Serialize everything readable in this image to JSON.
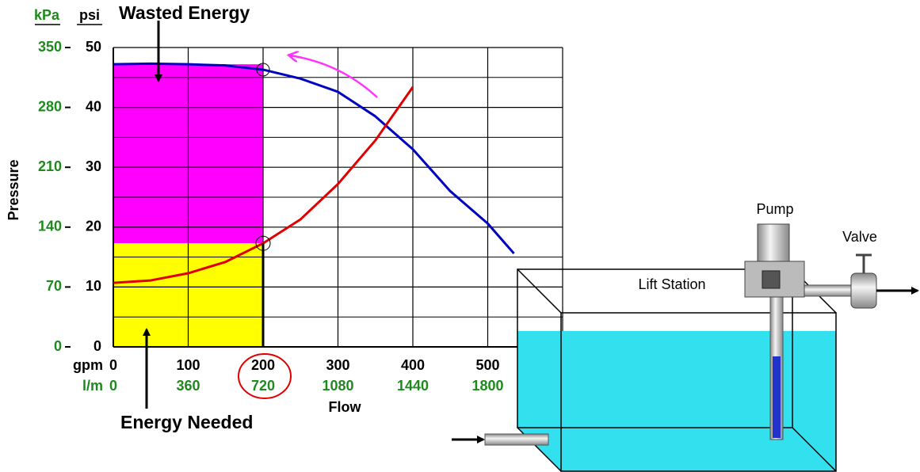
{
  "chart_data": {
    "type": "line",
    "annotations": [
      "Wasted Energy",
      "Energy Needed"
    ],
    "ylabel": "Pressure",
    "xlabel": "Flow",
    "y_unit": "psi",
    "y2_unit": "kPa",
    "x_unit": "gpm",
    "x2_unit": "l/m",
    "x": [
      0,
      50,
      100,
      150,
      200,
      250,
      300,
      350,
      400,
      450,
      500,
      535
    ],
    "series": [
      {
        "color": "#0000c0",
        "values": [
          47.2,
          47.3,
          47.2,
          47,
          46.3,
          44.8,
          42.6,
          38.5,
          33,
          26,
          20.6,
          15.6
        ]
      },
      {
        "color": "#e00000",
        "values": [
          10.7,
          11.1,
          12.3,
          14.2,
          17.3,
          21.3,
          27.2,
          34.5,
          43.4,
          null,
          null,
          null
        ]
      }
    ],
    "regions": [
      {
        "color": "#ff00ff",
        "x": [
          0,
          200
        ],
        "y": [
          17.3,
          47.2
        ]
      },
      {
        "color": "#ffff00",
        "x": [
          0,
          200
        ],
        "y": [
          0,
          17.3
        ]
      }
    ],
    "xlim": [
      0,
      600
    ],
    "xticks": [
      0,
      100,
      200,
      300,
      400,
      500
    ],
    "x2lim": [
      0,
      2160
    ],
    "x2ticks": [
      0,
      360,
      720,
      1080,
      1440,
      1800
    ],
    "ylim": [
      0,
      50
    ],
    "yticks": [
      0,
      10,
      20,
      30,
      40,
      50
    ],
    "yminor": [
      5,
      15,
      25,
      35,
      45
    ],
    "y2lim": [
      0,
      350
    ],
    "y2ticks": [
      0,
      70,
      140,
      210,
      280,
      350
    ],
    "grid": true
  },
  "diagram": {
    "pump": "Pump",
    "valve": "Valve",
    "lift_station": "Lift Station"
  }
}
